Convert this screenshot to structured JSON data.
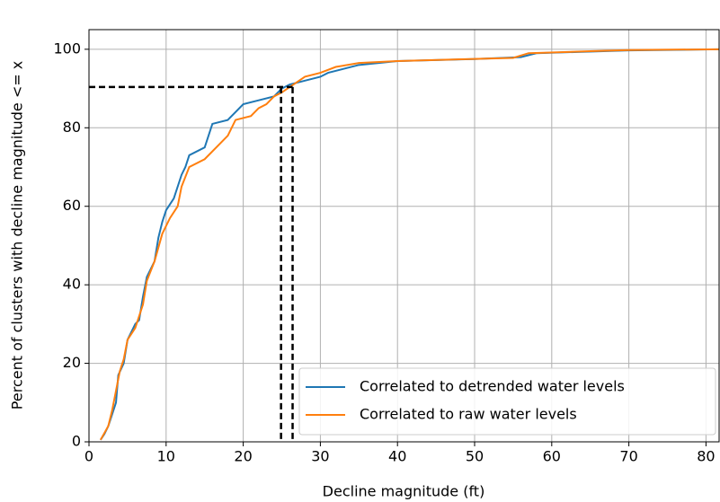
{
  "chart_data": {
    "type": "line",
    "xlabel": "Decline magnitude (ft)",
    "ylabel": "Percent of clusters with decline magnitude <= x",
    "xlim": [
      0,
      81.7
    ],
    "ylim": [
      0,
      105
    ],
    "xticks": [
      0,
      10,
      20,
      30,
      40,
      50,
      60,
      70,
      80
    ],
    "yticks": [
      0,
      20,
      40,
      60,
      80,
      100
    ],
    "grid": true,
    "legend": "lower right",
    "reference_lines": {
      "y": 90.4,
      "x": [
        24.9,
        26.4
      ]
    },
    "series": [
      {
        "name": "Correlated to detrended water levels",
        "color": "#1f77b4",
        "x": [
          1.5,
          2,
          2.5,
          3,
          3.5,
          3.8,
          4.5,
          5,
          6,
          6.5,
          7,
          7.5,
          8.5,
          9,
          9.5,
          10,
          11,
          12,
          12.5,
          13,
          15,
          16,
          18,
          19,
          20,
          22,
          24,
          25,
          26,
          28,
          30,
          31,
          33,
          35,
          40,
          50,
          56,
          58,
          70,
          81.7
        ],
        "values": [
          0.5,
          2,
          4,
          7,
          10,
          17,
          20,
          26,
          30,
          31,
          37,
          42,
          46,
          52,
          56,
          59,
          62,
          68,
          70,
          73,
          75,
          81,
          82,
          84,
          86,
          87,
          88,
          90,
          91,
          92,
          93,
          94,
          95,
          96,
          97,
          97.5,
          98,
          99,
          99.7,
          100
        ]
      },
      {
        "name": "Correlated to raw water levels",
        "color": "#ff7f0e",
        "x": [
          1.5,
          2.5,
          3,
          4,
          4.5,
          5,
          6,
          7,
          7.5,
          8.5,
          9.5,
          10.5,
          11.5,
          12,
          13,
          15,
          17,
          18,
          19,
          21,
          22,
          23,
          24,
          25,
          26.5,
          28,
          30,
          32,
          35,
          40,
          55,
          57,
          65,
          70,
          81.7
        ],
        "values": [
          0.5,
          4,
          8,
          18,
          21,
          26,
          29,
          35,
          41,
          46,
          53,
          57,
          60,
          65,
          70,
          72,
          76,
          78,
          82,
          83,
          85,
          86,
          88,
          89,
          91,
          93,
          94,
          95.5,
          96.5,
          97,
          97.8,
          99,
          99.5,
          99.8,
          100
        ]
      }
    ]
  }
}
